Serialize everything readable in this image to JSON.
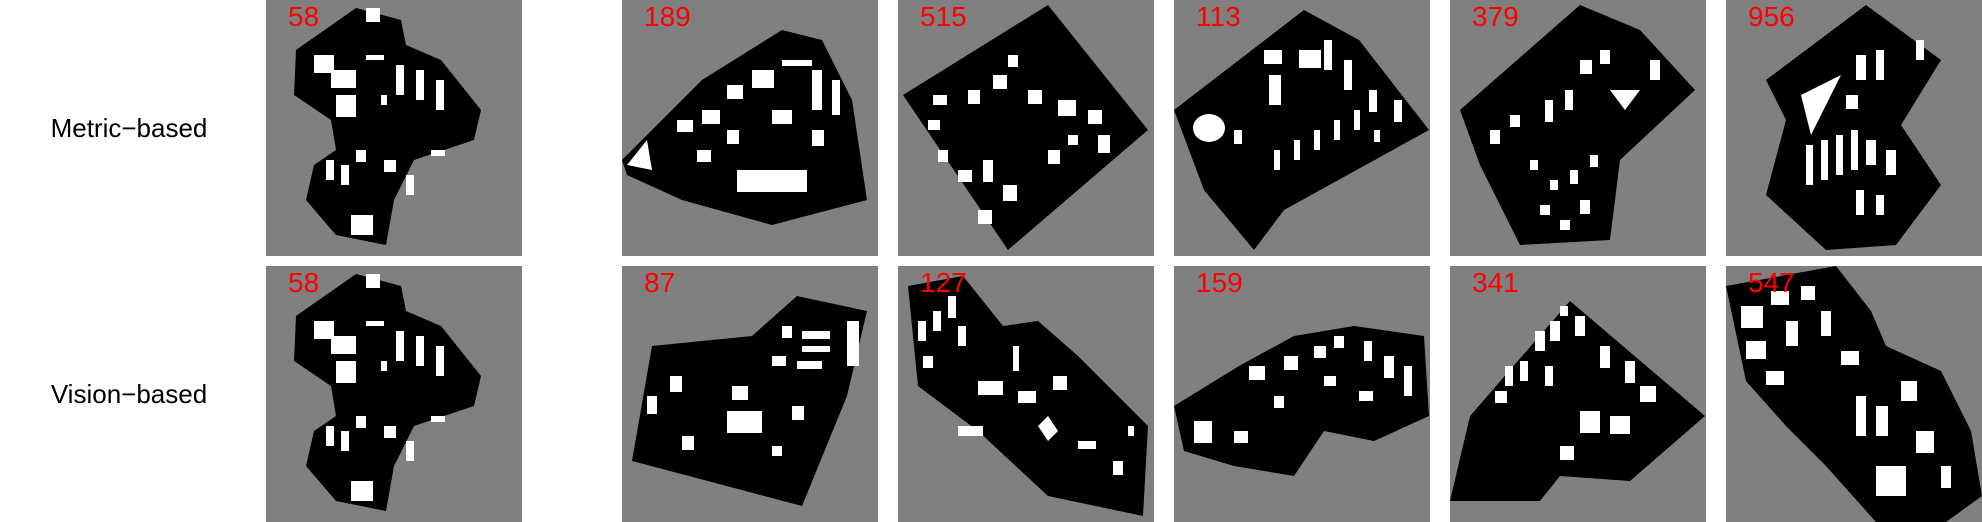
{
  "rows": [
    {
      "label": "Metric−based",
      "values": [
        "58",
        "189",
        "515",
        "113",
        "379",
        "956"
      ]
    },
    {
      "label": "Vision−based",
      "values": [
        "58",
        "87",
        "127",
        "159",
        "341",
        "547"
      ]
    }
  ],
  "colors": {
    "tile_bg": "#808080",
    "map": "#000000",
    "building": "#ffffff",
    "label": "#ff0000"
  }
}
